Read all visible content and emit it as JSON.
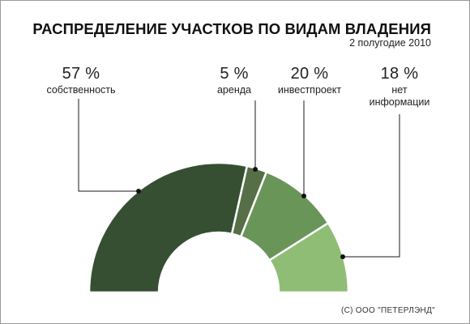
{
  "header": {
    "title": "РАСПРЕДЕЛЕНИЕ УЧАСТКОВ ПО ВИДАМ ВЛАДЕНИЯ",
    "subtitle": "2 полугодие 2010"
  },
  "chart_data": {
    "type": "pie",
    "variant": "semicircular donut",
    "title": "РАСПРЕДЕЛЕНИЕ УЧАСТКОВ ПО ВИДАМ ВЛАДЕНИЯ",
    "subtitle": "2 полугодие 2010",
    "unit": "%",
    "slices": [
      {
        "label": "собственность",
        "value": 57,
        "value_text": "57 %",
        "color": "#364f32"
      },
      {
        "label": "аренда",
        "value": 5,
        "value_text": "5 %",
        "color": "#566f47"
      },
      {
        "label": "инвестпроект",
        "value": 20,
        "value_text": "20 %",
        "color": "#6a9559"
      },
      {
        "label": "нет\nинформации",
        "value": 18,
        "value_text": "18 %",
        "color": "#8fbd75"
      }
    ],
    "legend": "none",
    "grid": false
  },
  "footer": {
    "copyright": "(С) ООО \"ПЕТЕРЛЭНД\""
  }
}
